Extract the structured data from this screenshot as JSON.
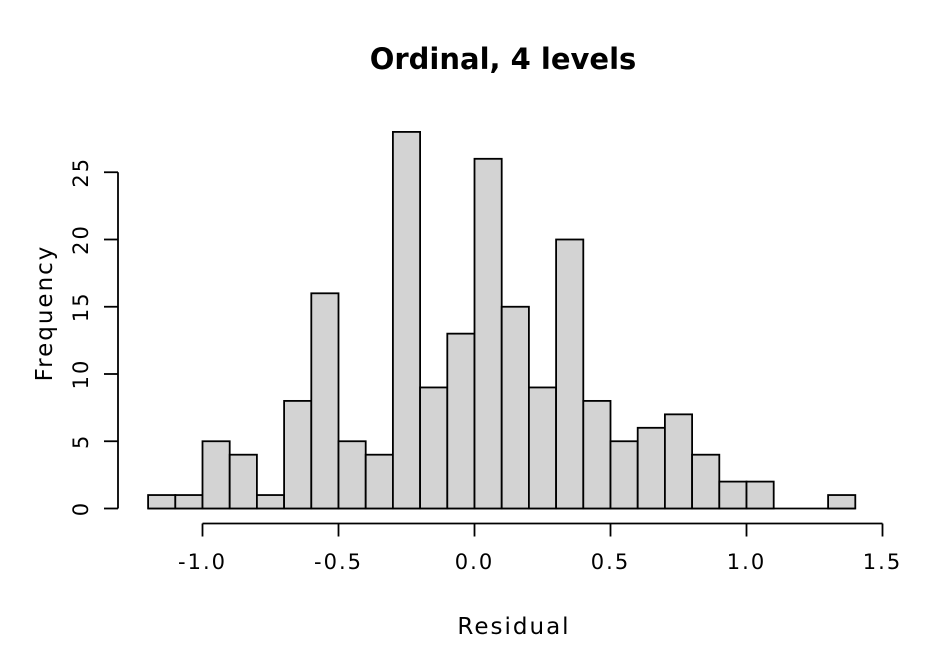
{
  "chart_data": {
    "type": "bar",
    "subtype": "histogram",
    "title": "Ordinal, 4 levels",
    "xlabel": "Residual",
    "ylabel": "Frequency",
    "bin_start": -1.2,
    "bin_width": 0.1,
    "counts": [
      1,
      1,
      5,
      4,
      1,
      8,
      16,
      5,
      4,
      28,
      9,
      13,
      26,
      15,
      9,
      20,
      8,
      5,
      6,
      7,
      4,
      2,
      2,
      0,
      0,
      1
    ],
    "total_observations": 200,
    "x_ticks": [
      -1.0,
      -0.5,
      0.0,
      0.5,
      1.0,
      1.5
    ],
    "x_tick_labels": [
      "-1.0",
      "-0.5",
      "0.0",
      "0.5",
      "1.0",
      "1.5"
    ],
    "y_ticks": [
      0,
      5,
      10,
      15,
      20,
      25
    ],
    "y_tick_labels": [
      "0",
      "5",
      "10",
      "15",
      "20",
      "25"
    ],
    "xlim": [
      -1.2,
      1.5
    ],
    "ylim": [
      0,
      28
    ],
    "grid": false,
    "legend": "none",
    "colors": {
      "bar_fill": "#d3d3d3",
      "bar_stroke": "#000000",
      "axis": "#000000",
      "background": "#ffffff",
      "text": "#000000"
    }
  }
}
